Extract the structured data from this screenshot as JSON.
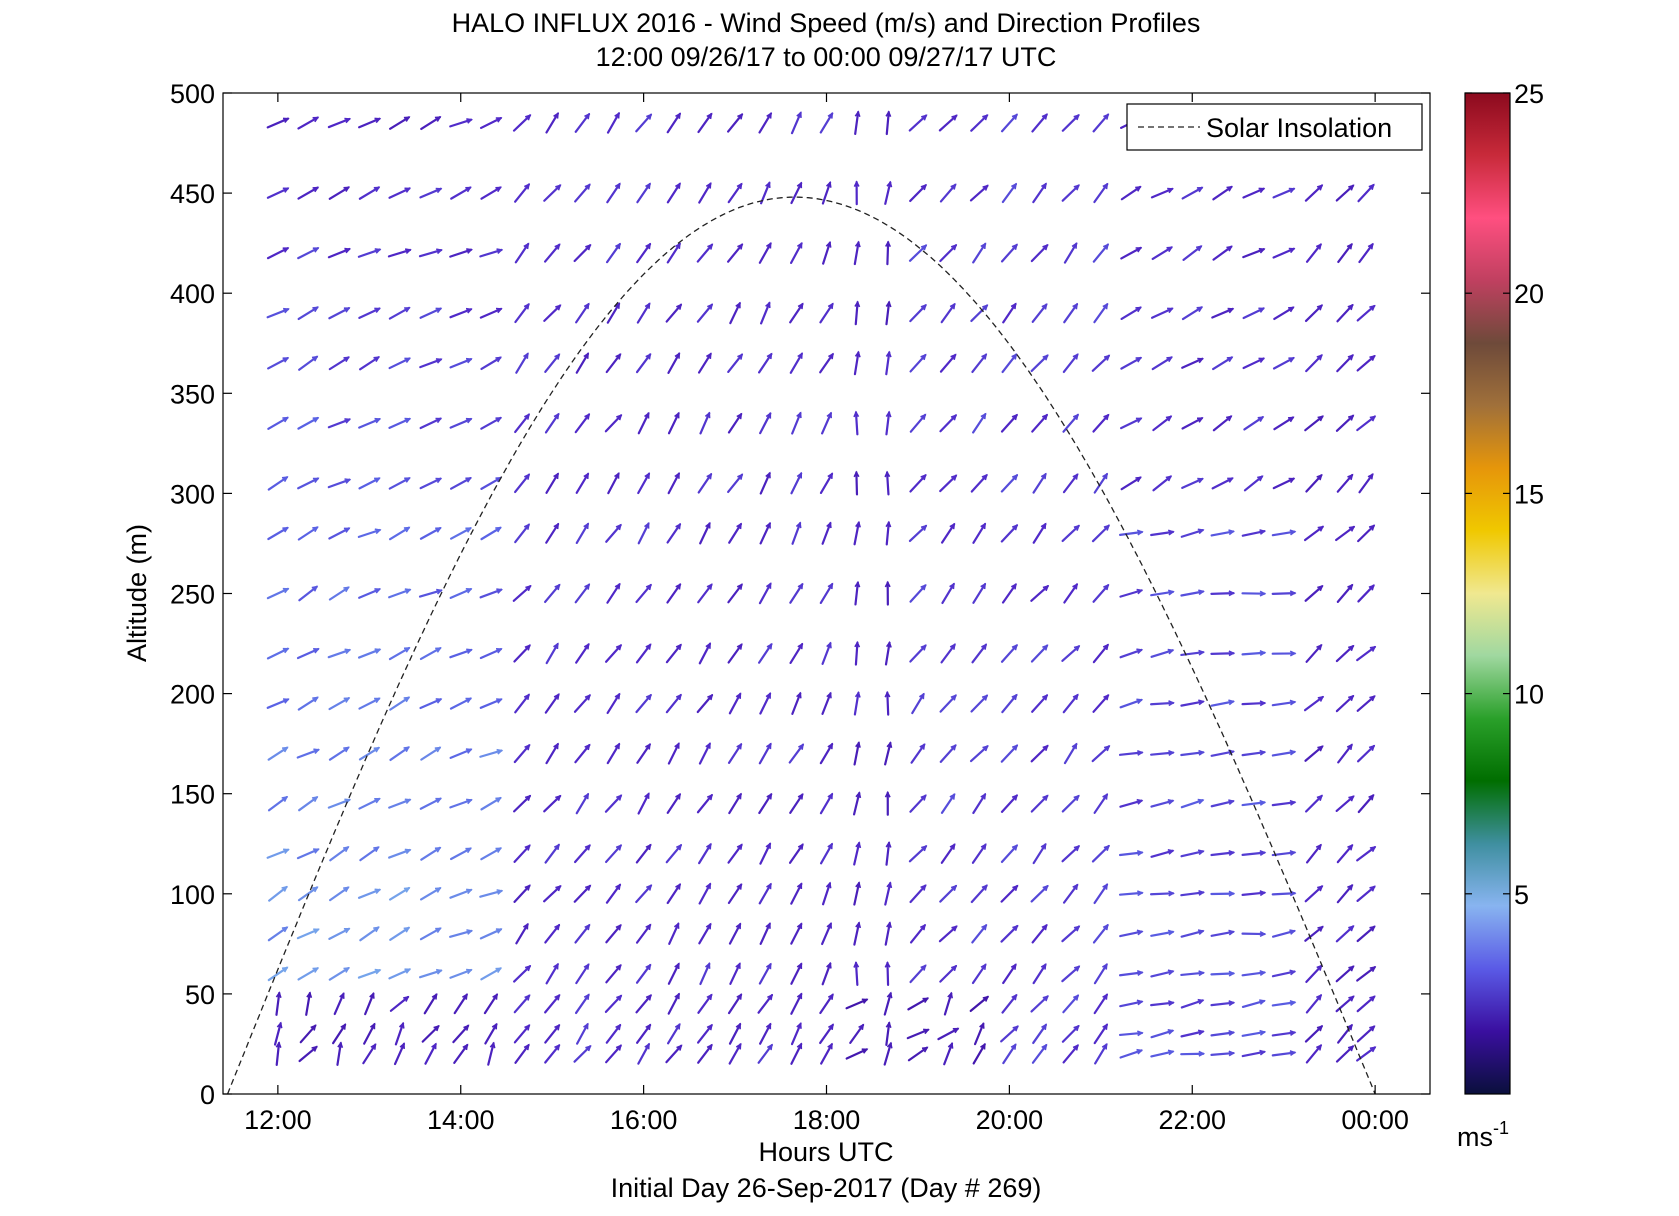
{
  "chart_data": {
    "type": "wind-barb-profile",
    "title": "HALO INFLUX 2016 - Wind Speed (m/s) and Direction Profiles",
    "subtitle": "12:00 09/26/17 to 00:00 09/27/17  UTC",
    "xlabel": "Hours UTC",
    "xlabel2": "Initial Day 26-Sep-2017 (Day # 269)",
    "ylabel": "Altitude (m)",
    "x_ticks": [
      "12:00",
      "14:00",
      "16:00",
      "18:00",
      "20:00",
      "22:00",
      "00:00"
    ],
    "x_tick_hours": [
      12,
      14,
      16,
      18,
      20,
      22,
      24
    ],
    "xlim_hours": [
      11.4,
      24.6
    ],
    "y_ticks": [
      "0",
      "50",
      "100",
      "150",
      "200",
      "250",
      "300",
      "350",
      "400",
      "450",
      "500"
    ],
    "ylim": [
      0,
      500
    ],
    "legend": {
      "label": "Solar Insolation",
      "placement": "top-right",
      "line_style": "dashed"
    },
    "solar_insolation": {
      "start_hour": 11.45,
      "peak_hour": 17.65,
      "end_hour": 24.0,
      "peak_altitude": 448
    },
    "colorbar": {
      "label": "ms",
      "label_exponent": "-1",
      "ticks": [
        "5",
        "10",
        "15",
        "20",
        "25"
      ],
      "tick_values": [
        5,
        10,
        15,
        20,
        25
      ],
      "range": [
        0,
        25
      ],
      "colors": [
        "#0a0f3c",
        "#3a0fa0",
        "#5a5ae6",
        "#88b4f0",
        "#3f8fa0",
        "#006e00",
        "#2aa02a",
        "#a0d8a0",
        "#f0e890",
        "#f0c800",
        "#e6960a",
        "#a0703a",
        "#6e4a3a",
        "#c04060",
        "#ff4f80",
        "#c82a3a",
        "#8c0a1e"
      ]
    },
    "wind_profiles": {
      "note": "profile times in hours UTC; altitudes in m; speed in m/s; direction in degrees (direction the arrow points, 0 = up/north, clockwise)",
      "altitudes": [
        20,
        30,
        45,
        60,
        80,
        100,
        120,
        145,
        170,
        195,
        220,
        250,
        280,
        305,
        335,
        365,
        390,
        420,
        450,
        485
      ],
      "times": [
        12.0,
        12.33,
        12.67,
        13.0,
        13.33,
        13.67,
        14.0,
        14.33,
        14.67,
        15.0,
        15.33,
        15.67,
        16.0,
        16.33,
        16.67,
        17.0,
        17.33,
        17.67,
        18.0,
        18.33,
        18.67,
        19.0,
        19.33,
        19.67,
        20.0,
        20.33,
        20.67,
        21.0,
        21.33,
        21.67,
        22.0,
        22.33,
        22.67,
        23.0,
        23.33,
        23.67,
        23.9
      ]
    }
  }
}
